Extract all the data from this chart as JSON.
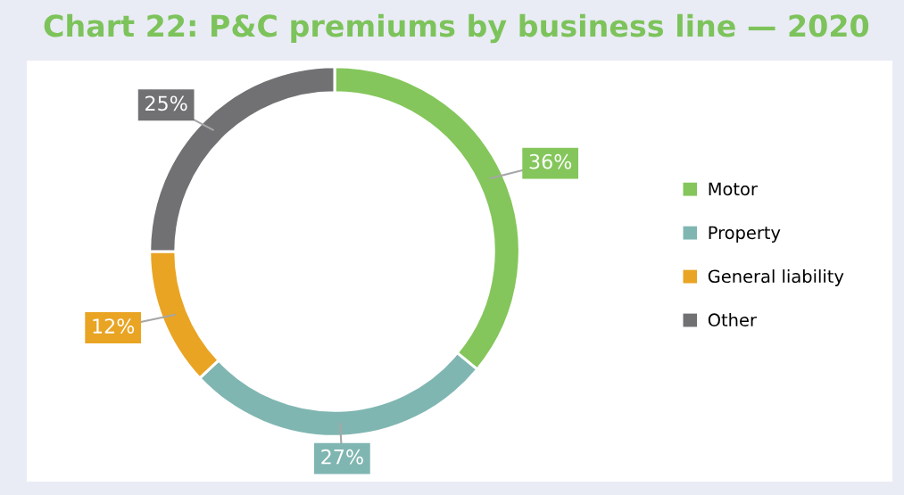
{
  "chart_data": {
    "type": "donut",
    "title": "Chart 22: P&C premiums by business line — 2020",
    "categories": [
      "Motor",
      "Property",
      "General liability",
      "Other"
    ],
    "values": [
      36,
      27,
      12,
      25
    ],
    "value_labels": [
      "36%",
      "27%",
      "12%",
      "25%"
    ],
    "colors": [
      "#84c65b",
      "#80b6b1",
      "#e9a423",
      "#717073"
    ],
    "legend": "right"
  }
}
